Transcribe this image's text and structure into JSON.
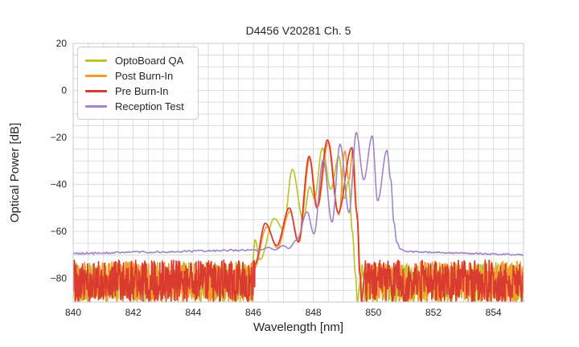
{
  "chart_data": {
    "type": "line",
    "title": "D4456 V20281 Ch. 5",
    "xlabel": "Wavelength [nm]",
    "ylabel": "Optical Power [dB]",
    "xlim": [
      840,
      855
    ],
    "ylim": [
      -90,
      20
    ],
    "grid": {
      "x_step": 0.5,
      "y_step": 5,
      "color": "#dcdcdc",
      "spine_color": "#c9c9c9",
      "on": true
    },
    "legend_position": "upper left",
    "text_color": "#262626",
    "x_ticks": [
      {
        "v": 840,
        "label": "840"
      },
      {
        "v": 842,
        "label": "842"
      },
      {
        "v": 844,
        "label": "844"
      },
      {
        "v": 846,
        "label": "846"
      },
      {
        "v": 848,
        "label": "848"
      },
      {
        "v": 850,
        "label": "850"
      },
      {
        "v": 852,
        "label": "852"
      },
      {
        "v": 854,
        "label": "854"
      }
    ],
    "y_ticks": [
      {
        "v": 20,
        "label": "20"
      },
      {
        "v": 0,
        "label": "0"
      },
      {
        "v": -20,
        "label": "−20"
      },
      {
        "v": -40,
        "label": "−40"
      },
      {
        "v": -60,
        "label": "−60"
      },
      {
        "v": -80,
        "label": "−80"
      }
    ],
    "series": [
      {
        "name": "OptoBoard QA",
        "color": "#bfc32b",
        "linewidth": 1.7,
        "segments": [
          {
            "type": "noise",
            "x0": 840.0,
            "x1": 845.95,
            "base": [
              -81.4,
              -81.4
            ],
            "amp": 8.6,
            "seed": 101,
            "step": 0.013
          },
          {
            "type": "curve",
            "points": [
              [
                845.95,
                -77
              ],
              [
                846.06,
                -63.5
              ],
              [
                846.22,
                -72
              ],
              [
                846.7,
                -54.5
              ],
              [
                847.0,
                -59
              ],
              [
                847.3,
                -33.6
              ],
              [
                847.66,
                -55
              ],
              [
                847.88,
                -41
              ],
              [
                848.04,
                -46
              ],
              [
                848.3,
                -24.5
              ],
              [
                848.58,
                -42
              ],
              [
                848.85,
                -28
              ],
              [
                849.03,
                -46
              ],
              [
                849.17,
                -38.5
              ],
              [
                849.3,
                -60
              ],
              [
                849.4,
                -78
              ],
              [
                849.47,
                -90.5
              ]
            ]
          },
          {
            "type": "noise",
            "x0": 849.58,
            "x1": 855.0,
            "base": [
              -82.5,
              -81.3
            ],
            "amp": 8.6,
            "seed": 102,
            "step": 0.013
          }
        ]
      },
      {
        "name": "Post Burn-In",
        "color": "#f8992e",
        "linewidth": 1.7,
        "segments": [
          {
            "type": "noise",
            "x0": 840.0,
            "x1": 846.02,
            "base": [
              -81.4,
              -81.4
            ],
            "amp": 8.6,
            "seed": 201,
            "step": 0.013
          },
          {
            "type": "curve",
            "points": [
              [
                846.02,
                -76
              ],
              [
                846.45,
                -58
              ],
              [
                846.8,
                -67
              ],
              [
                847.22,
                -51.5
              ],
              [
                847.52,
                -64.5
              ],
              [
                847.88,
                -29
              ],
              [
                848.14,
                -49.5
              ],
              [
                848.5,
                -22
              ],
              [
                848.85,
                -53
              ],
              [
                849.05,
                -25.8
              ],
              [
                849.18,
                -38
              ],
              [
                849.32,
                -25.3
              ],
              [
                849.47,
                -55
              ],
              [
                849.57,
                -78
              ],
              [
                849.63,
                -90.5
              ]
            ]
          },
          {
            "type": "noise",
            "x0": 849.75,
            "x1": 855.0,
            "base": [
              -81.8,
              -81.2
            ],
            "amp": 8.6,
            "seed": 202,
            "step": 0.013
          }
        ]
      },
      {
        "name": "Pre Burn-In",
        "color": "#da3b30",
        "linewidth": 1.7,
        "segments": [
          {
            "type": "noise",
            "x0": 840.0,
            "x1": 846.05,
            "base": [
              -81.2,
              -81.2
            ],
            "amp": 9.0,
            "seed": 301,
            "step": 0.013
          },
          {
            "type": "curve",
            "points": [
              [
                846.05,
                -74
              ],
              [
                846.4,
                -56.5
              ],
              [
                846.78,
                -66
              ],
              [
                847.2,
                -50
              ],
              [
                847.5,
                -64.5
              ],
              [
                847.86,
                -28
              ],
              [
                848.12,
                -50
              ],
              [
                848.47,
                -21
              ],
              [
                848.83,
                -52
              ],
              [
                849.28,
                -24.3
              ],
              [
                849.45,
                -52
              ],
              [
                849.55,
                -78
              ],
              [
                849.61,
                -90.5
              ]
            ]
          },
          {
            "type": "noise",
            "x0": 849.72,
            "x1": 855.0,
            "base": [
              -81.2,
              -81.2
            ],
            "amp": 9.0,
            "seed": 302,
            "step": 0.013
          }
        ]
      },
      {
        "name": "Reception Test",
        "color": "#a084c7",
        "linewidth": 1.6,
        "segments": [
          {
            "type": "noise",
            "x0": 840.0,
            "x1": 846.25,
            "base": [
              -69.4,
              -67.8
            ],
            "amp": 0.45,
            "seed": 401,
            "step": 0.045
          },
          {
            "type": "curve",
            "points": [
              [
                846.25,
                -67.8
              ],
              [
                846.5,
                -66.8
              ],
              [
                846.72,
                -67.8
              ],
              [
                847.0,
                -66.0
              ],
              [
                847.18,
                -67.2
              ],
              [
                847.45,
                -63.5
              ],
              [
                847.79,
                -51.7
              ],
              [
                848.02,
                -61
              ],
              [
                848.33,
                -29.4
              ],
              [
                848.62,
                -56
              ],
              [
                848.89,
                -22.8
              ],
              [
                849.19,
                -52
              ],
              [
                849.43,
                -17.9
              ],
              [
                849.68,
                -38
              ],
              [
                849.96,
                -19.4
              ],
              [
                850.14,
                -47
              ],
              [
                850.45,
                -25.5
              ],
              [
                850.58,
                -38
              ],
              [
                850.68,
                -56
              ],
              [
                850.78,
                -64.5
              ],
              [
                850.9,
                -67.5
              ],
              [
                851.1,
                -68.5
              ]
            ]
          },
          {
            "type": "noise",
            "x0": 851.1,
            "x1": 855.0,
            "base": [
              -68.6,
              -69.9
            ],
            "amp": 0.35,
            "seed": 402,
            "step": 0.045
          }
        ]
      }
    ]
  }
}
